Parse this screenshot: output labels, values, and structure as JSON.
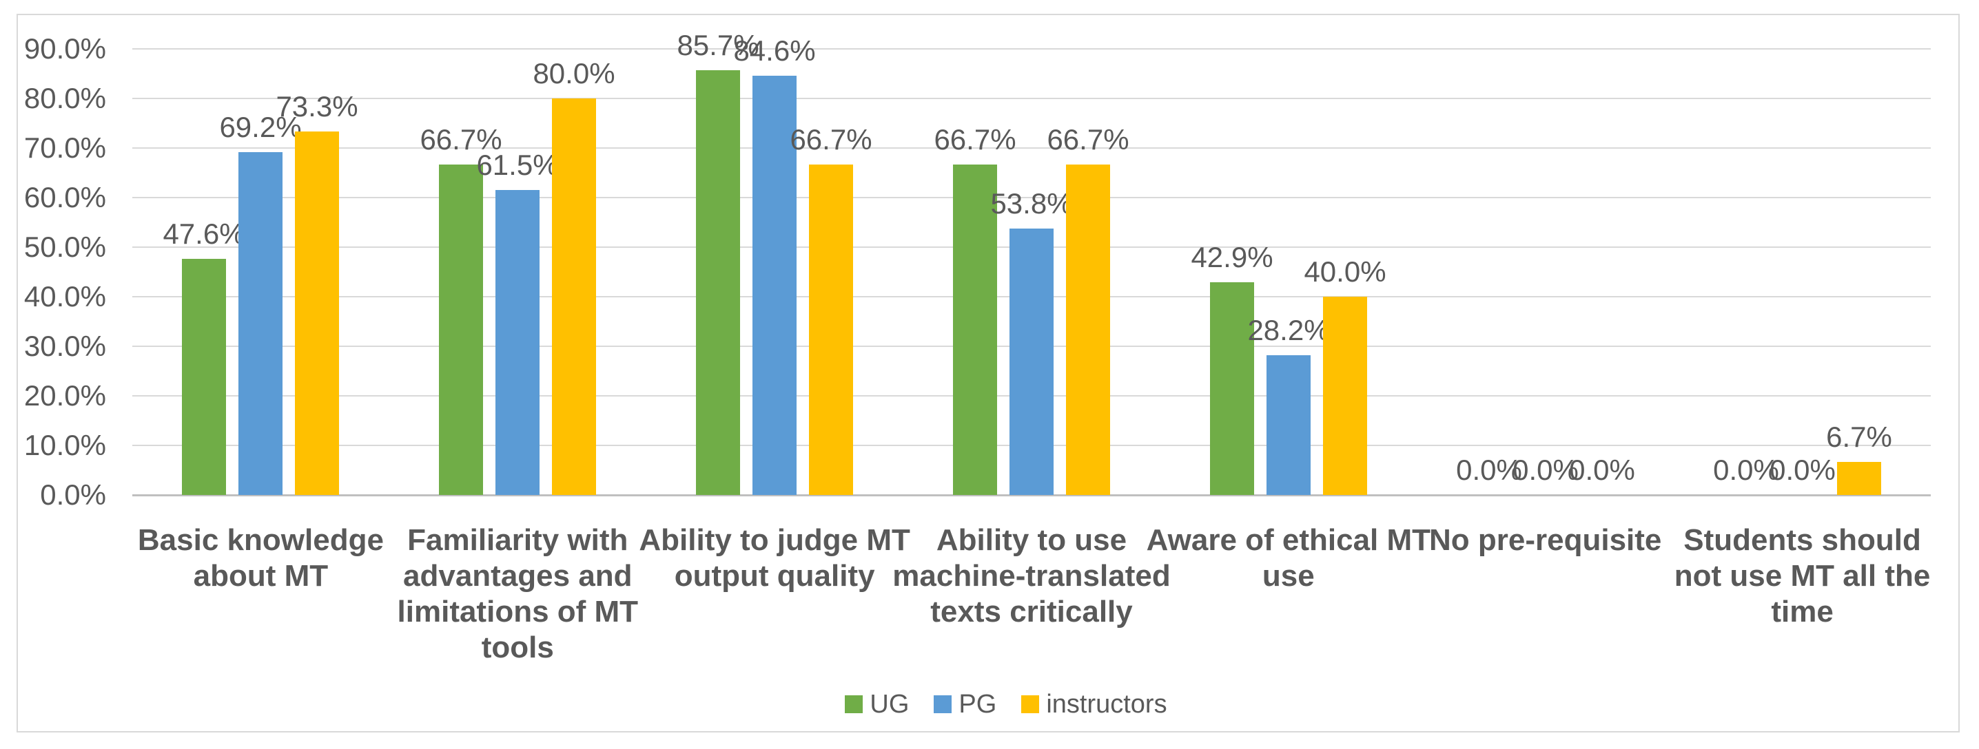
{
  "chart_data": {
    "type": "bar",
    "title": "",
    "categories": [
      "Basic knowledge about MT",
      "Familiarity with advantages and limitations of MT tools",
      "Ability to judge MT output quality",
      "Ability to use machine-translated texts critically",
      "Aware of ethical MT use",
      "No pre-requisite",
      "Students should not use MT all the time"
    ],
    "series": [
      {
        "name": "UG",
        "color": "#70AD47",
        "values": [
          47.6,
          66.7,
          85.7,
          66.7,
          42.9,
          0.0,
          0.0
        ],
        "labels": [
          "47.6%",
          "66.7%",
          "85.7%",
          "66.7%",
          "42.9%",
          "0.0%",
          "0.0%"
        ]
      },
      {
        "name": "PG",
        "color": "#5B9BD5",
        "values": [
          69.2,
          61.5,
          84.6,
          53.8,
          28.2,
          0.0,
          0.0
        ],
        "labels": [
          "69.2%",
          "61.5%",
          "84.6%",
          "53.8%",
          "28.2%",
          "0.0%",
          "0.0%"
        ]
      },
      {
        "name": "instructors",
        "color": "#FFC000",
        "values": [
          73.3,
          80.0,
          66.7,
          66.7,
          40.0,
          0.0,
          6.7
        ],
        "labels": [
          "73.3%",
          "80.0%",
          "66.7%",
          "66.7%",
          "40.0%",
          "0.0%",
          "6.7%"
        ]
      }
    ],
    "y_axis": {
      "min": 0,
      "max": 90,
      "step": 10,
      "tick_labels": [
        "0.0%",
        "10.0%",
        "20.0%",
        "30.0%",
        "40.0%",
        "50.0%",
        "60.0%",
        "70.0%",
        "80.0%",
        "90.0%"
      ]
    },
    "legend": {
      "position": "bottom",
      "entries": [
        "UG",
        "PG",
        "instructors"
      ]
    },
    "grid": true,
    "style": {
      "gridline_color": "#D9D9D9",
      "zero_line_color": "#BFBFBF",
      "panel_border_color": "#D9D9D9",
      "text_color": "#595959",
      "background": "#FFFFFF"
    }
  }
}
